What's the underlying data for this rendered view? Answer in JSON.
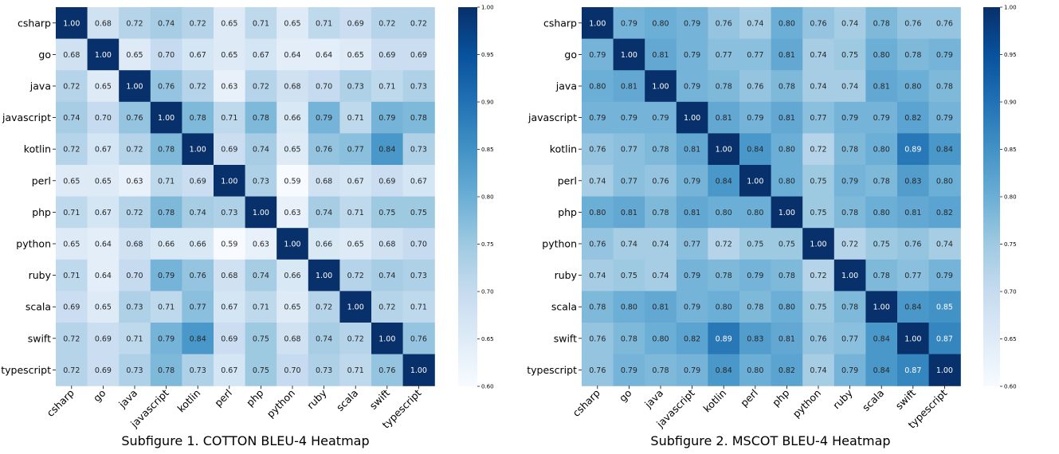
{
  "chart_data": [
    {
      "type": "heatmap",
      "title": "Subfigure 1. COTTON BLEU-4 Heatmap",
      "xlabel": "",
      "ylabel": "",
      "rows": [
        "csharp",
        "go",
        "java",
        "javascript",
        "kotlin",
        "perl",
        "php",
        "python",
        "ruby",
        "scala",
        "swift",
        "typescript"
      ],
      "cols": [
        "csharp",
        "go",
        "java",
        "javascript",
        "kotlin",
        "perl",
        "php",
        "python",
        "ruby",
        "scala",
        "swift",
        "typescript"
      ],
      "values": [
        [
          1.0,
          0.68,
          0.72,
          0.74,
          0.72,
          0.65,
          0.71,
          0.65,
          0.71,
          0.69,
          0.72,
          0.72
        ],
        [
          0.68,
          1.0,
          0.65,
          0.7,
          0.67,
          0.65,
          0.67,
          0.64,
          0.64,
          0.65,
          0.69,
          0.69
        ],
        [
          0.72,
          0.65,
          1.0,
          0.76,
          0.72,
          0.63,
          0.72,
          0.68,
          0.7,
          0.73,
          0.71,
          0.73
        ],
        [
          0.74,
          0.7,
          0.76,
          1.0,
          0.78,
          0.71,
          0.78,
          0.66,
          0.79,
          0.71,
          0.79,
          0.78
        ],
        [
          0.72,
          0.67,
          0.72,
          0.78,
          1.0,
          0.69,
          0.74,
          0.65,
          0.76,
          0.77,
          0.84,
          0.73
        ],
        [
          0.65,
          0.65,
          0.63,
          0.71,
          0.69,
          1.0,
          0.73,
          0.59,
          0.68,
          0.67,
          0.69,
          0.67
        ],
        [
          0.71,
          0.67,
          0.72,
          0.78,
          0.74,
          0.73,
          1.0,
          0.63,
          0.74,
          0.71,
          0.75,
          0.75
        ],
        [
          0.65,
          0.64,
          0.68,
          0.66,
          0.66,
          0.59,
          0.63,
          1.0,
          0.66,
          0.65,
          0.68,
          0.7
        ],
        [
          0.71,
          0.64,
          0.7,
          0.79,
          0.76,
          0.68,
          0.74,
          0.66,
          1.0,
          0.72,
          0.74,
          0.73
        ],
        [
          0.69,
          0.65,
          0.73,
          0.71,
          0.77,
          0.67,
          0.71,
          0.65,
          0.72,
          1.0,
          0.72,
          0.71
        ],
        [
          0.72,
          0.69,
          0.71,
          0.79,
          0.84,
          0.69,
          0.75,
          0.68,
          0.74,
          0.72,
          1.0,
          0.76
        ],
        [
          0.72,
          0.69,
          0.73,
          0.78,
          0.73,
          0.67,
          0.75,
          0.7,
          0.73,
          0.71,
          0.76,
          1.0
        ]
      ],
      "colorbar": {
        "range": [
          0.6,
          1.0
        ],
        "ticks": [
          "0.60",
          "0.65",
          "0.70",
          "0.75",
          "0.80",
          "0.85",
          "0.90",
          "0.95",
          "1.00"
        ],
        "colormap": "Blues"
      }
    },
    {
      "type": "heatmap",
      "title": "Subfigure 2. MSCOT BLEU-4 Heatmap",
      "xlabel": "",
      "ylabel": "",
      "rows": [
        "csharp",
        "go",
        "java",
        "javascript",
        "kotlin",
        "perl",
        "php",
        "python",
        "ruby",
        "scala",
        "swift",
        "typescript"
      ],
      "cols": [
        "csharp",
        "go",
        "java",
        "javascript",
        "kotlin",
        "perl",
        "php",
        "python",
        "ruby",
        "scala",
        "swift",
        "typescript"
      ],
      "values": [
        [
          1.0,
          0.79,
          0.8,
          0.79,
          0.76,
          0.74,
          0.8,
          0.76,
          0.74,
          0.78,
          0.76,
          0.76
        ],
        [
          0.79,
          1.0,
          0.81,
          0.79,
          0.77,
          0.77,
          0.81,
          0.74,
          0.75,
          0.8,
          0.78,
          0.79
        ],
        [
          0.8,
          0.81,
          1.0,
          0.79,
          0.78,
          0.76,
          0.78,
          0.74,
          0.74,
          0.81,
          0.8,
          0.78
        ],
        [
          0.79,
          0.79,
          0.79,
          1.0,
          0.81,
          0.79,
          0.81,
          0.77,
          0.79,
          0.79,
          0.82,
          0.79
        ],
        [
          0.76,
          0.77,
          0.78,
          0.81,
          1.0,
          0.84,
          0.8,
          0.72,
          0.78,
          0.8,
          0.89,
          0.84
        ],
        [
          0.74,
          0.77,
          0.76,
          0.79,
          0.84,
          1.0,
          0.8,
          0.75,
          0.79,
          0.78,
          0.83,
          0.8
        ],
        [
          0.8,
          0.81,
          0.78,
          0.81,
          0.8,
          0.8,
          1.0,
          0.75,
          0.78,
          0.8,
          0.81,
          0.82
        ],
        [
          0.76,
          0.74,
          0.74,
          0.77,
          0.72,
          0.75,
          0.75,
          1.0,
          0.72,
          0.75,
          0.76,
          0.74
        ],
        [
          0.74,
          0.75,
          0.74,
          0.79,
          0.78,
          0.79,
          0.78,
          0.72,
          1.0,
          0.78,
          0.77,
          0.79
        ],
        [
          0.78,
          0.8,
          0.81,
          0.79,
          0.8,
          0.78,
          0.8,
          0.75,
          0.78,
          1.0,
          0.84,
          0.85
        ],
        [
          0.76,
          0.78,
          0.8,
          0.82,
          0.89,
          0.83,
          0.81,
          0.76,
          0.77,
          0.84,
          1.0,
          0.87
        ],
        [
          0.76,
          0.79,
          0.78,
          0.79,
          0.84,
          0.8,
          0.82,
          0.74,
          0.79,
          0.84,
          0.87,
          1.0
        ]
      ],
      "colorbar": {
        "range": [
          0.6,
          1.0
        ],
        "ticks": [
          "0.60",
          "0.65",
          "0.70",
          "0.75",
          "0.80",
          "0.85",
          "0.90",
          "0.95",
          "1.00"
        ],
        "colormap": "Blues"
      }
    }
  ],
  "colors": {
    "blues_stops": [
      "#f7fbff",
      "#deebf7",
      "#c6dbef",
      "#9ecae1",
      "#6baed6",
      "#4292c6",
      "#2171b5",
      "#08519c",
      "#08306b"
    ],
    "text_dark": "#262626",
    "text_light": "#ffffff"
  }
}
